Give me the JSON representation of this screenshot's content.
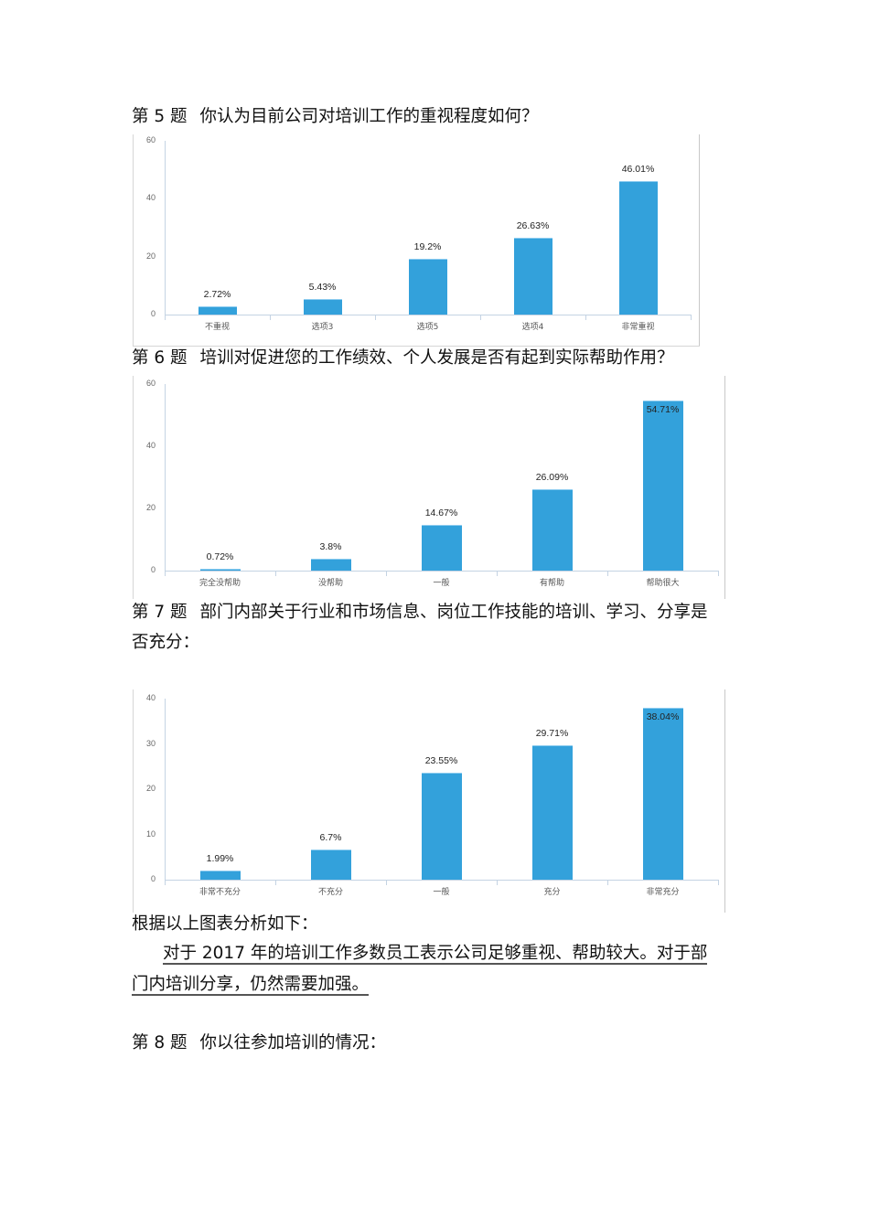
{
  "questions": {
    "q5": {
      "num": "第 5 题",
      "text": "你认为目前公司对培训工作的重视程度如何？"
    },
    "q6": {
      "num": "第 6 题",
      "text": "培训对促进您的工作绩效、个人发展是否有起到实际帮助作用？"
    },
    "q7": {
      "num": "第 7 题",
      "text_line1": "部门内部关于行业和市场信息、岗位工作技能的培训、学习、分享是",
      "text_line2": "否充分："
    },
    "q8": {
      "num": "第 8 题",
      "text": "你以往参加培训的情况："
    }
  },
  "analysis": {
    "heading": "根据以上图表分析如下：",
    "line1": "对于 2017 年的培训工作多数员工表示公司足够重视、帮助较大。对于部",
    "line2": "门内培训分享，仍然需要加强。"
  },
  "colors": {
    "bar": "#33a1db",
    "axis": "#c4d3e3"
  },
  "chart_data": [
    {
      "type": "bar",
      "title": "第 5 题 你认为目前公司对培训工作的重视程度如何？",
      "categories": [
        "不重视",
        "选项3",
        "选项5",
        "选项4",
        "非常重视"
      ],
      "values": [
        2.72,
        5.43,
        19.2,
        26.63,
        46.01
      ],
      "labels": [
        "2.72%",
        "5.43%",
        "19.2%",
        "26.63%",
        "46.01%"
      ],
      "yticks": [
        "0",
        "20",
        "40",
        "60"
      ],
      "ylim": [
        0,
        60
      ],
      "xlabel": "",
      "ylabel": "",
      "grid": false,
      "legend": "none"
    },
    {
      "type": "bar",
      "title": "第 6 题 培训对促进您的工作绩效、个人发展是否有起到实际帮助作用？",
      "categories": [
        "完全没帮助",
        "没帮助",
        "一般",
        "有帮助",
        "帮助很大"
      ],
      "values": [
        0.72,
        3.8,
        14.67,
        26.09,
        54.71
      ],
      "labels": [
        "0.72%",
        "3.8%",
        "14.67%",
        "26.09%",
        "54.71%"
      ],
      "yticks": [
        "0",
        "20",
        "40",
        "60"
      ],
      "ylim": [
        0,
        60
      ],
      "xlabel": "",
      "ylabel": "",
      "grid": false,
      "legend": "none"
    },
    {
      "type": "bar",
      "title": "第 7 题 部门内部关于行业和市场信息、岗位工作技能的培训、学习、分享是否充分：",
      "categories": [
        "非常不充分",
        "不充分",
        "一般",
        "充分",
        "非常充分"
      ],
      "values": [
        1.99,
        6.7,
        23.55,
        29.71,
        38.04
      ],
      "labels": [
        "1.99%",
        "6.7%",
        "23.55%",
        "29.71%",
        "38.04%"
      ],
      "yticks": [
        "0",
        "10",
        "20",
        "30",
        "40"
      ],
      "ylim": [
        0,
        40
      ],
      "xlabel": "",
      "ylabel": "",
      "grid": false,
      "legend": "none"
    }
  ]
}
